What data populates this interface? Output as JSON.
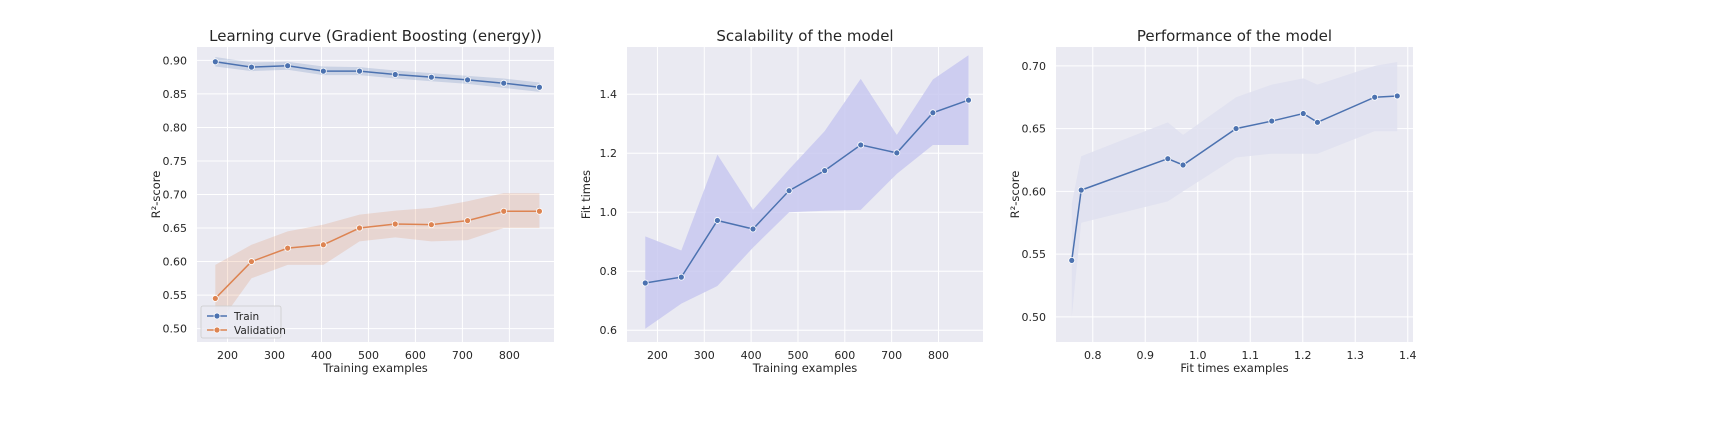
{
  "colors": {
    "train": "#4c72b0",
    "validation": "#dd8452",
    "scalability_band": "#c8c8f0",
    "performance_band": "#dfe1f0"
  },
  "chart_data": [
    {
      "type": "line",
      "title": "Learning curve (Gradient Boosting (energy))",
      "xlabel": "Training examples",
      "ylabel": "R²-score",
      "xlim": [
        135,
        895
      ],
      "ylim": [
        0.48,
        0.92
      ],
      "xticks": [
        200,
        300,
        400,
        500,
        600,
        700,
        800
      ],
      "yticks": [
        0.5,
        0.55,
        0.6,
        0.65,
        0.7,
        0.75,
        0.8,
        0.85,
        0.9
      ],
      "ytick_labels": [
        "0.50",
        "0.55",
        "0.60",
        "0.65",
        "0.70",
        "0.75",
        "0.80",
        "0.85",
        "0.90"
      ],
      "legend": {
        "placement": "bottom-left",
        "entries": [
          "Train",
          "Validation"
        ]
      },
      "grid": true,
      "x": [
        174,
        251,
        328,
        404,
        481,
        557,
        634,
        711,
        788,
        864
      ],
      "series": [
        {
          "name": "Train",
          "values": [
            0.898,
            0.89,
            0.892,
            0.884,
            0.884,
            0.879,
            0.875,
            0.871,
            0.866,
            0.86
          ],
          "lower": [
            0.891,
            0.884,
            0.886,
            0.878,
            0.878,
            0.873,
            0.869,
            0.865,
            0.859,
            0.853
          ],
          "upper": [
            0.905,
            0.897,
            0.898,
            0.891,
            0.89,
            0.885,
            0.881,
            0.877,
            0.873,
            0.867
          ]
        },
        {
          "name": "Validation",
          "values": [
            0.545,
            0.6,
            0.62,
            0.625,
            0.65,
            0.656,
            0.655,
            0.661,
            0.675,
            0.675
          ],
          "lower": [
            0.5,
            0.575,
            0.595,
            0.595,
            0.63,
            0.636,
            0.63,
            0.632,
            0.65,
            0.65
          ],
          "upper": [
            0.595,
            0.625,
            0.645,
            0.655,
            0.67,
            0.676,
            0.68,
            0.69,
            0.702,
            0.702
          ]
        }
      ]
    },
    {
      "type": "line",
      "title": "Scalability of the model",
      "xlabel": "Training examples",
      "ylabel": "Fit times",
      "xlim": [
        135,
        895
      ],
      "ylim": [
        0.56,
        1.56
      ],
      "xticks": [
        200,
        300,
        400,
        500,
        600,
        700,
        800
      ],
      "yticks": [
        0.6,
        0.8,
        1.0,
        1.2,
        1.4
      ],
      "ytick_labels": [
        "0.6",
        "0.8",
        "1.0",
        "1.2",
        "1.4"
      ],
      "grid": true,
      "x": [
        174,
        251,
        328,
        404,
        481,
        557,
        634,
        711,
        788,
        864
      ],
      "series": [
        {
          "values": [
            0.76,
            0.78,
            0.972,
            0.943,
            1.073,
            1.141,
            1.228,
            1.201,
            1.337,
            1.38
          ],
          "lower": [
            0.605,
            0.69,
            0.75,
            0.88,
            1.0,
            1.005,
            1.008,
            1.13,
            1.228,
            1.228
          ],
          "upper": [
            0.918,
            0.87,
            1.195,
            1.008,
            1.145,
            1.275,
            1.452,
            1.262,
            1.45,
            1.532
          ]
        }
      ]
    },
    {
      "type": "line",
      "title": "Performance of the model",
      "xlabel": "Fit times examples",
      "ylabel": "R²-score",
      "xlim": [
        0.73,
        1.41
      ],
      "ylim": [
        0.48,
        0.715
      ],
      "xticks": [
        0.8,
        0.9,
        1.0,
        1.1,
        1.2,
        1.3,
        1.4
      ],
      "xtick_labels": [
        "0.8",
        "0.9",
        "1.0",
        "1.1",
        "1.2",
        "1.3",
        "1.4"
      ],
      "yticks": [
        0.5,
        0.55,
        0.6,
        0.65,
        0.7
      ],
      "ytick_labels": [
        "0.50",
        "0.55",
        "0.60",
        "0.65",
        "0.70"
      ],
      "grid": true,
      "x": [
        0.76,
        0.778,
        0.943,
        0.972,
        1.073,
        1.141,
        1.201,
        1.228,
        1.337,
        1.38
      ],
      "series": [
        {
          "values": [
            0.545,
            0.601,
            0.626,
            0.621,
            0.65,
            0.656,
            0.662,
            0.655,
            0.675,
            0.676
          ],
          "lower": [
            0.5,
            0.575,
            0.592,
            0.6,
            0.627,
            0.63,
            0.63,
            0.63,
            0.648,
            0.648
          ],
          "upper": [
            0.59,
            0.628,
            0.655,
            0.645,
            0.675,
            0.685,
            0.69,
            0.685,
            0.7,
            0.703
          ]
        }
      ]
    }
  ]
}
